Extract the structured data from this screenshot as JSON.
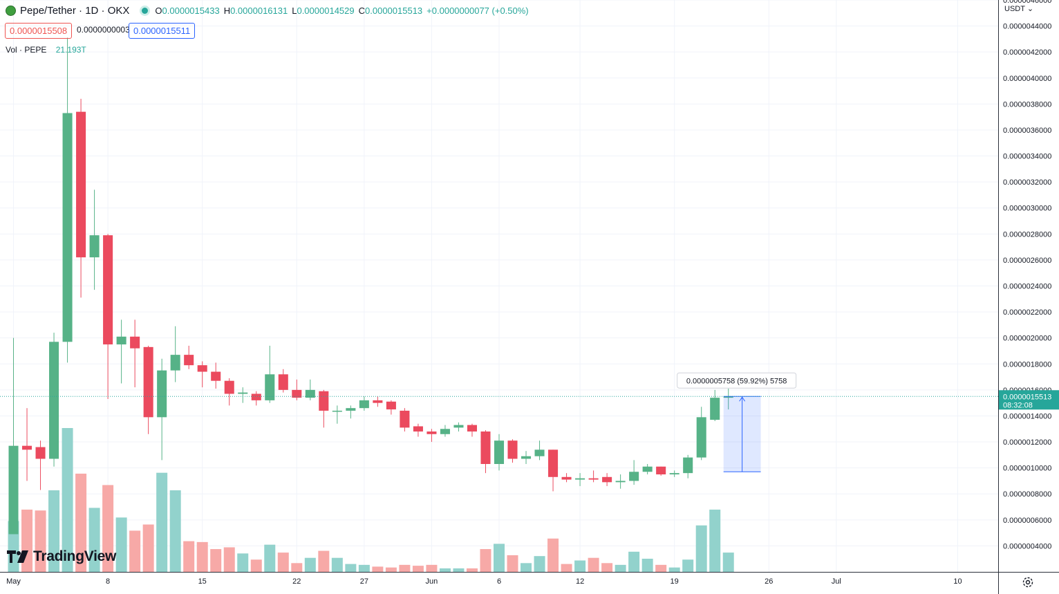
{
  "header": {
    "symbol": "Pepe/Tether · 1D · OKX",
    "o_label": "O",
    "o_value": "0.0000015433",
    "h_label": "H",
    "h_value": "0.0000016131",
    "l_label": "L",
    "l_value": "0.0000014529",
    "c_label": "C",
    "c_value": "0.0000015513",
    "change": "+0.0000000077 (+0.50%)"
  },
  "price_boxes": {
    "sell": "0.0000015508",
    "spread": "0.0000000003",
    "buy": "0.0000015511"
  },
  "volume_row": {
    "label": "Vol · PEPE",
    "value": "21.193T"
  },
  "currency": "USDT",
  "brand": "TradingView",
  "colors": {
    "up": "#26a69a",
    "down": "#ef5350",
    "candle_up": "#56b287",
    "candle_down": "#eb4a5e",
    "vol_up": "#92d2cc",
    "vol_down": "#f7a9a7"
  },
  "chart_data": {
    "type": "candlestick",
    "title": "Pepe/Tether · 1D · OKX",
    "y_axis": {
      "ylim": [
        2e-07,
        4.6e-06
      ],
      "tick_labels": [
        "0.0000004000",
        "0.0000006000",
        "0.0000008000",
        "0.0000010000",
        "0.0000012000",
        "0.0000014000",
        "0.0000016000",
        "0.0000018000",
        "0.0000020000",
        "0.0000022000",
        "0.0000024000",
        "0.0000026000",
        "0.0000028000",
        "0.0000030000",
        "0.0000032000",
        "0.0000034000",
        "0.0000036000",
        "0.0000038000",
        "0.0000040000",
        "0.0000042000",
        "0.0000044000",
        "0.0000046000"
      ]
    },
    "x_axis": {
      "start_date": "2023-04-30",
      "end_date": "2023-07-13",
      "tick_labels": [
        {
          "date": "2023-05-01",
          "label": "May"
        },
        {
          "date": "2023-05-08",
          "label": "8"
        },
        {
          "date": "2023-05-15",
          "label": "15"
        },
        {
          "date": "2023-05-22",
          "label": "22"
        },
        {
          "date": "2023-05-27",
          "label": "27"
        },
        {
          "date": "2023-06-01",
          "label": "Jun"
        },
        {
          "date": "2023-06-06",
          "label": "6"
        },
        {
          "date": "2023-06-12",
          "label": "12"
        },
        {
          "date": "2023-06-19",
          "label": "19"
        },
        {
          "date": "2023-06-26",
          "label": "26"
        },
        {
          "date": "2023-07-01",
          "label": "Jul"
        },
        {
          "date": "2023-07-10",
          "label": "10"
        }
      ]
    },
    "grid": true,
    "candles": [
      {
        "date": "2023-05-01",
        "open": 4.9e-07,
        "high": 2e-06,
        "low": 4.9e-07,
        "close": 1.17e-06,
        "volume": 0.58
      },
      {
        "date": "2023-05-02",
        "open": 1.17e-06,
        "high": 1.46e-06,
        "low": 9e-07,
        "close": 1.14e-06,
        "volume": 0.71
      },
      {
        "date": "2023-05-03",
        "open": 1.16e-06,
        "high": 1.21e-06,
        "low": 8.3e-07,
        "close": 1.07e-06,
        "volume": 0.7
      },
      {
        "date": "2023-05-04",
        "open": 1.07e-06,
        "high": 2.04e-06,
        "low": 1.01e-06,
        "close": 1.97e-06,
        "volume": 0.93
      },
      {
        "date": "2023-05-05",
        "open": 1.97e-06,
        "high": 4.31e-06,
        "low": 1.81e-06,
        "close": 3.73e-06,
        "volume": 1.64
      },
      {
        "date": "2023-05-06",
        "open": 3.74e-06,
        "high": 3.84e-06,
        "low": 2.31e-06,
        "close": 2.62e-06,
        "volume": 1.12
      },
      {
        "date": "2023-05-07",
        "open": 2.62e-06,
        "high": 3.14e-06,
        "low": 2.37e-06,
        "close": 2.79e-06,
        "volume": 0.73
      },
      {
        "date": "2023-05-08",
        "open": 2.79e-06,
        "high": 2.8e-06,
        "low": 1.53e-06,
        "close": 1.95e-06,
        "volume": 0.99
      },
      {
        "date": "2023-05-09",
        "open": 1.95e-06,
        "high": 2.14e-06,
        "low": 1.65e-06,
        "close": 2.01e-06,
        "volume": 0.62
      },
      {
        "date": "2023-05-10",
        "open": 2.01e-06,
        "high": 2.14e-06,
        "low": 1.62e-06,
        "close": 1.92e-06,
        "volume": 0.47
      },
      {
        "date": "2023-05-11",
        "open": 1.93e-06,
        "high": 1.94e-06,
        "low": 1.26e-06,
        "close": 1.39e-06,
        "volume": 0.54
      },
      {
        "date": "2023-05-12",
        "open": 1.39e-06,
        "high": 1.84e-06,
        "low": 1.06e-06,
        "close": 1.75e-06,
        "volume": 1.13
      },
      {
        "date": "2023-05-13",
        "open": 1.75e-06,
        "high": 2.09e-06,
        "low": 1.66e-06,
        "close": 1.87e-06,
        "volume": 0.93
      },
      {
        "date": "2023-05-14",
        "open": 1.87e-06,
        "high": 1.94e-06,
        "low": 1.76e-06,
        "close": 1.79e-06,
        "volume": 0.35
      },
      {
        "date": "2023-05-15",
        "open": 1.79e-06,
        "high": 1.82e-06,
        "low": 1.62e-06,
        "close": 1.74e-06,
        "volume": 0.34
      },
      {
        "date": "2023-05-16",
        "open": 1.74e-06,
        "high": 1.81e-06,
        "low": 1.61e-06,
        "close": 1.67e-06,
        "volume": 0.26
      },
      {
        "date": "2023-05-17",
        "open": 1.67e-06,
        "high": 1.69e-06,
        "low": 1.48e-06,
        "close": 1.57e-06,
        "volume": 0.28
      },
      {
        "date": "2023-05-18",
        "open": 1.57e-06,
        "high": 1.62e-06,
        "low": 1.5e-06,
        "close": 1.58e-06,
        "volume": 0.21
      },
      {
        "date": "2023-05-19",
        "open": 1.57e-06,
        "high": 1.59e-06,
        "low": 1.48e-06,
        "close": 1.52e-06,
        "volume": 0.14
      },
      {
        "date": "2023-05-20",
        "open": 1.52e-06,
        "high": 1.94e-06,
        "low": 1.5e-06,
        "close": 1.72e-06,
        "volume": 0.31
      },
      {
        "date": "2023-05-21",
        "open": 1.72e-06,
        "high": 1.76e-06,
        "low": 1.58e-06,
        "close": 1.6e-06,
        "volume": 0.22
      },
      {
        "date": "2023-05-22",
        "open": 1.6e-06,
        "high": 1.68e-06,
        "low": 1.52e-06,
        "close": 1.54e-06,
        "volume": 0.1
      },
      {
        "date": "2023-05-23",
        "open": 1.54e-06,
        "high": 1.68e-06,
        "low": 1.52e-06,
        "close": 1.6e-06,
        "volume": 0.16
      },
      {
        "date": "2023-05-24",
        "open": 1.59e-06,
        "high": 1.6e-06,
        "low": 1.31e-06,
        "close": 1.44e-06,
        "volume": 0.24
      },
      {
        "date": "2023-05-25",
        "open": 1.44e-06,
        "high": 1.48e-06,
        "low": 1.34e-06,
        "close": 1.44e-06,
        "volume": 0.16
      },
      {
        "date": "2023-05-26",
        "open": 1.44e-06,
        "high": 1.48e-06,
        "low": 1.38e-06,
        "close": 1.46e-06,
        "volume": 0.09
      },
      {
        "date": "2023-05-27",
        "open": 1.46e-06,
        "high": 1.55e-06,
        "low": 1.44e-06,
        "close": 1.52e-06,
        "volume": 0.08
      },
      {
        "date": "2023-05-28",
        "open": 1.52e-06,
        "high": 1.55e-06,
        "low": 1.47e-06,
        "close": 1.5e-06,
        "volume": 0.06
      },
      {
        "date": "2023-05-29",
        "open": 1.51e-06,
        "high": 1.52e-06,
        "low": 1.41e-06,
        "close": 1.45e-06,
        "volume": 0.05
      },
      {
        "date": "2023-05-30",
        "open": 1.44e-06,
        "high": 1.46e-06,
        "low": 1.28e-06,
        "close": 1.31e-06,
        "volume": 0.08
      },
      {
        "date": "2023-05-31",
        "open": 1.32e-06,
        "high": 1.34e-06,
        "low": 1.24e-06,
        "close": 1.28e-06,
        "volume": 0.07
      },
      {
        "date": "2023-06-01",
        "open": 1.28e-06,
        "high": 1.3e-06,
        "low": 1.2e-06,
        "close": 1.26e-06,
        "volume": 0.08
      },
      {
        "date": "2023-06-02",
        "open": 1.26e-06,
        "high": 1.33e-06,
        "low": 1.24e-06,
        "close": 1.3e-06,
        "volume": 0.04
      },
      {
        "date": "2023-06-03",
        "open": 1.31e-06,
        "high": 1.35e-06,
        "low": 1.28e-06,
        "close": 1.33e-06,
        "volume": 0.04
      },
      {
        "date": "2023-06-04",
        "open": 1.33e-06,
        "high": 1.34e-06,
        "low": 1.24e-06,
        "close": 1.28e-06,
        "volume": 0.04
      },
      {
        "date": "2023-06-05",
        "open": 1.28e-06,
        "high": 1.29e-06,
        "low": 9.6e-07,
        "close": 1.03e-06,
        "volume": 0.26
      },
      {
        "date": "2023-06-06",
        "open": 1.03e-06,
        "high": 1.26e-06,
        "low": 9.8e-07,
        "close": 1.21e-06,
        "volume": 0.32
      },
      {
        "date": "2023-06-07",
        "open": 1.21e-06,
        "high": 1.22e-06,
        "low": 1.04e-06,
        "close": 1.07e-06,
        "volume": 0.19
      },
      {
        "date": "2023-06-08",
        "open": 1.07e-06,
        "high": 1.13e-06,
        "low": 1.03e-06,
        "close": 1.09e-06,
        "volume": 0.1
      },
      {
        "date": "2023-06-09",
        "open": 1.09e-06,
        "high": 1.21e-06,
        "low": 1.06e-06,
        "close": 1.14e-06,
        "volume": 0.18
      },
      {
        "date": "2023-06-10",
        "open": 1.14e-06,
        "high": 1.14e-06,
        "low": 8.2e-07,
        "close": 9.3e-07,
        "volume": 0.38
      },
      {
        "date": "2023-06-11",
        "open": 9.3e-07,
        "high": 9.6e-07,
        "low": 8.9e-07,
        "close": 9.1e-07,
        "volume": 0.09
      },
      {
        "date": "2023-06-12",
        "open": 9.1e-07,
        "high": 9.6e-07,
        "low": 8.6e-07,
        "close": 9.2e-07,
        "volume": 0.13
      },
      {
        "date": "2023-06-13",
        "open": 9.2e-07,
        "high": 9.8e-07,
        "low": 8.9e-07,
        "close": 9.1e-07,
        "volume": 0.16
      },
      {
        "date": "2023-06-14",
        "open": 9.3e-07,
        "high": 9.6e-07,
        "low": 8.6e-07,
        "close": 8.9e-07,
        "volume": 0.1
      },
      {
        "date": "2023-06-15",
        "open": 8.9e-07,
        "high": 9.5e-07,
        "low": 8.4e-07,
        "close": 9e-07,
        "volume": 0.08
      },
      {
        "date": "2023-06-16",
        "open": 9e-07,
        "high": 1.06e-06,
        "low": 8.7e-07,
        "close": 9.7e-07,
        "volume": 0.23
      },
      {
        "date": "2023-06-17",
        "open": 9.7e-07,
        "high": 1.03e-06,
        "low": 9.5e-07,
        "close": 1.01e-06,
        "volume": 0.15
      },
      {
        "date": "2023-06-18",
        "open": 1.01e-06,
        "high": 1.01e-06,
        "low": 9.4e-07,
        "close": 9.5e-07,
        "volume": 0.08
      },
      {
        "date": "2023-06-19",
        "open": 9.5e-07,
        "high": 9.8e-07,
        "low": 9.3e-07,
        "close": 9.6e-07,
        "volume": 0.05
      },
      {
        "date": "2023-06-20",
        "open": 9.6e-07,
        "high": 1.1e-06,
        "low": 9.2e-07,
        "close": 1.08e-06,
        "volume": 0.14
      },
      {
        "date": "2023-06-21",
        "open": 1.08e-06,
        "high": 1.47e-06,
        "low": 1.06e-06,
        "close": 1.39e-06,
        "volume": 0.53
      },
      {
        "date": "2023-06-22",
        "open": 1.37e-06,
        "high": 1.6e-06,
        "low": 1.36e-06,
        "close": 1.54e-06,
        "volume": 0.71
      },
      {
        "date": "2023-06-23",
        "open": 1.54e-06,
        "high": 1.61e-06,
        "low": 1.45e-06,
        "close": 1.55e-06,
        "volume": 0.22
      }
    ],
    "volume_scale_max": 1.64,
    "last_price_label": "0.0000015513",
    "countdown": "08:32:08",
    "measure": {
      "from_date": "2023-06-23",
      "to_date": "2023-06-25",
      "from_price": 9.7e-07,
      "to_price": 1.55e-06,
      "label": "0.0000005758 (59.92%) 5758"
    }
  }
}
